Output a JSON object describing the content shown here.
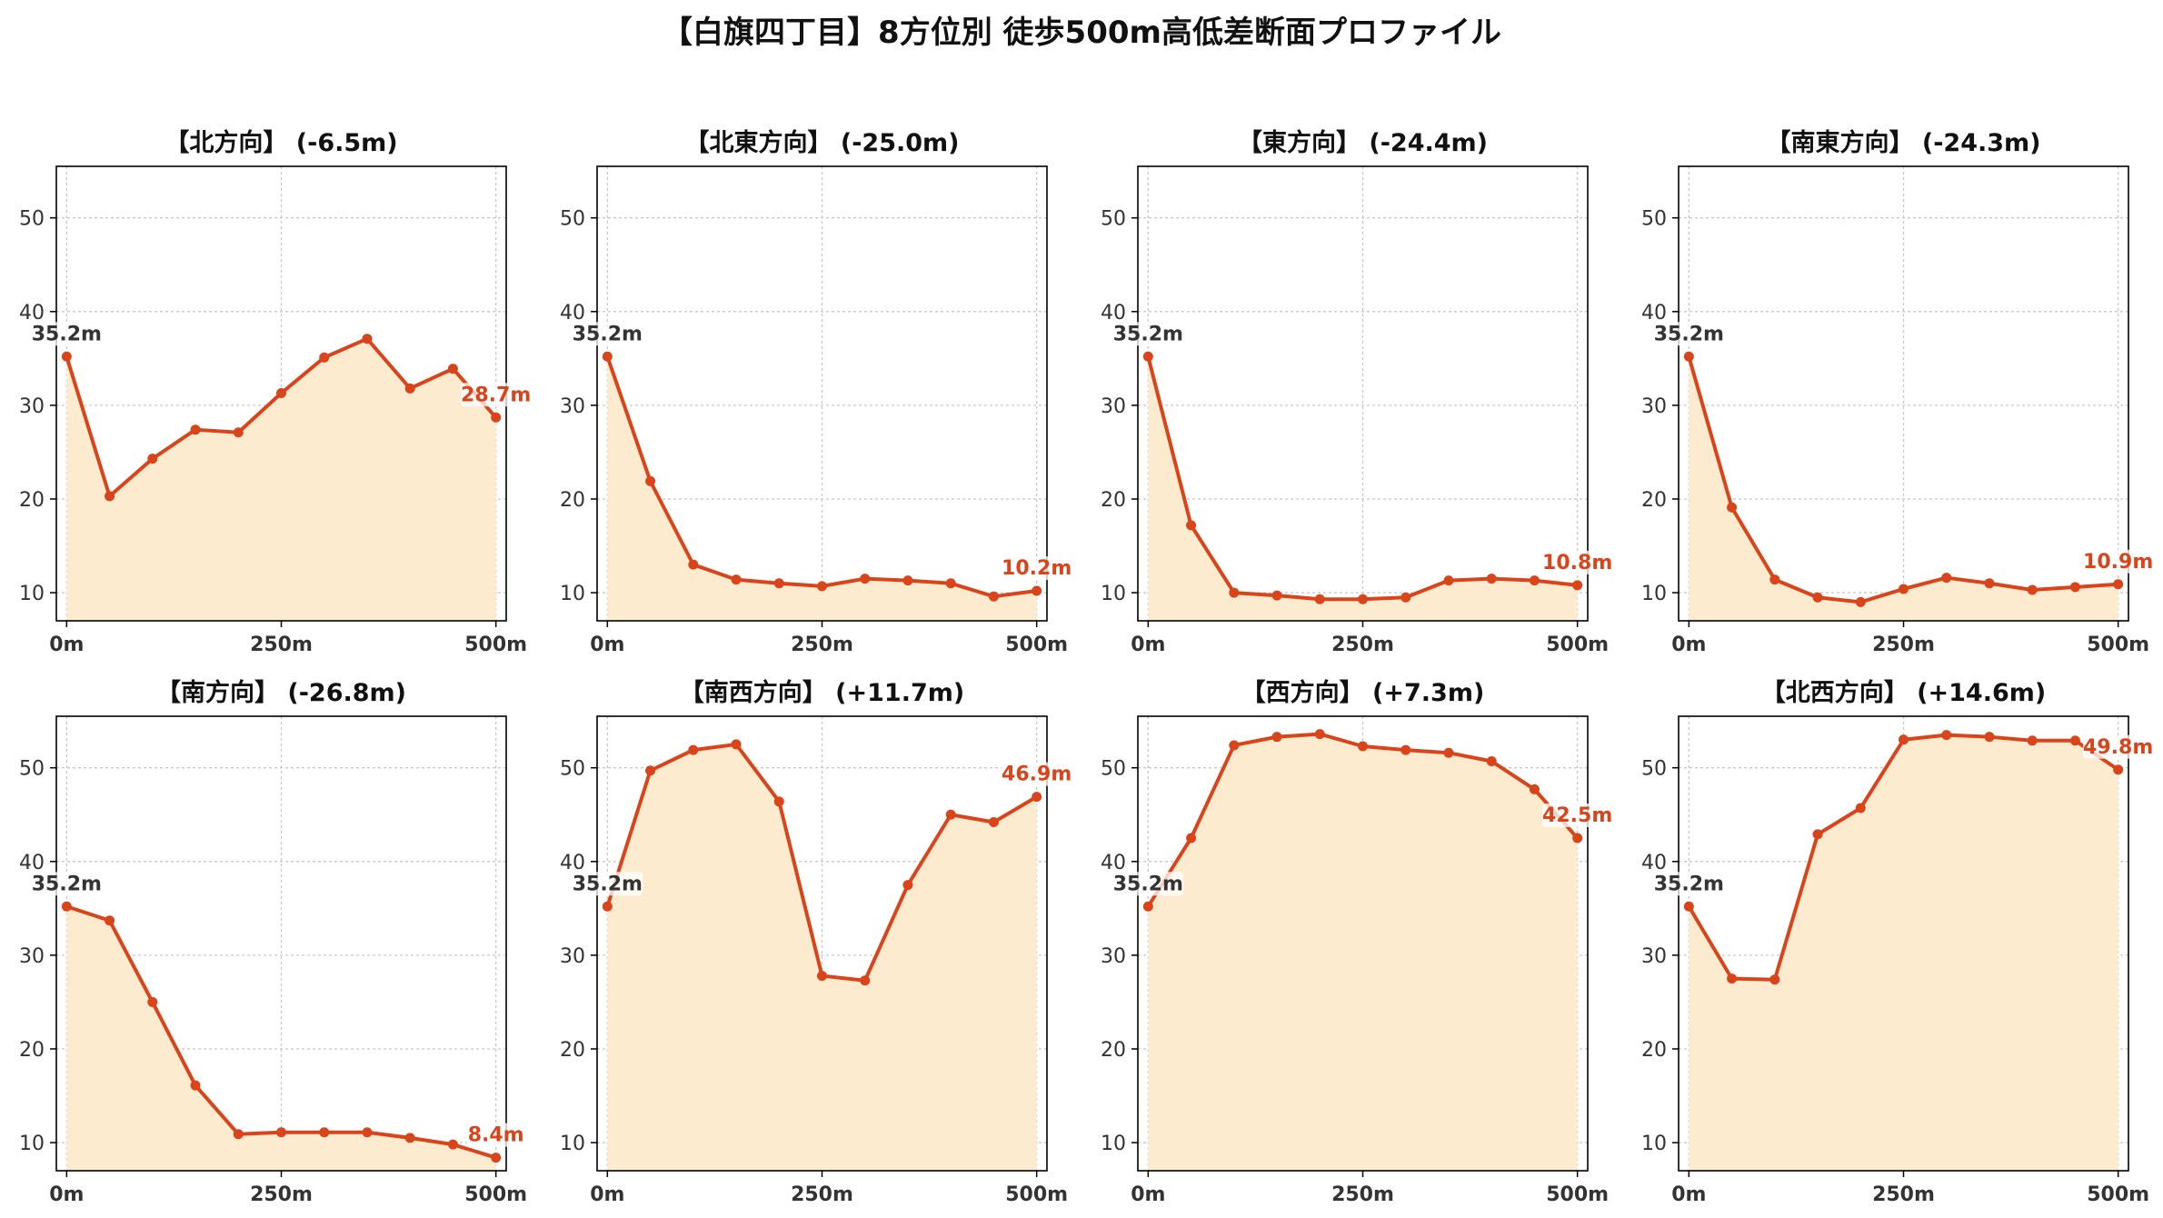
{
  "title": "【白旗四丁目】8方位別 徒歩500m高低差断面プロファイル",
  "colors": {
    "line": "#d9441a",
    "fill": "#fdebd0",
    "start_label": "#333333",
    "end_label": "#d9441a",
    "grid": "#c8c8c8",
    "axis": "#000000",
    "tick_text": "#333333"
  },
  "chart_data": [
    {
      "type": "area",
      "title": "【北方向】 (-6.5m)",
      "x": [
        0,
        50,
        100,
        150,
        200,
        250,
        300,
        350,
        400,
        450,
        500
      ],
      "y": [
        35.2,
        20.3,
        24.3,
        27.4,
        27.1,
        31.3,
        35.1,
        37.1,
        31.8,
        33.9,
        28.7
      ],
      "start_label": "35.2m",
      "end_label": "28.7m",
      "xticks": [
        0,
        250,
        500
      ],
      "xtick_labels": [
        "0m",
        "250m",
        "500m"
      ],
      "yticks": [
        10,
        20,
        30,
        40,
        50
      ],
      "ytick_labels": [
        "10",
        "20",
        "30",
        "40",
        "50"
      ],
      "xlim": [
        -12,
        512
      ],
      "ylim": [
        7,
        55.5
      ],
      "grid": true
    },
    {
      "type": "area",
      "title": "【北東方向】 (-25.0m)",
      "x": [
        0,
        50,
        100,
        150,
        200,
        250,
        300,
        350,
        400,
        450,
        500
      ],
      "y": [
        35.2,
        21.9,
        13.0,
        11.4,
        11.0,
        10.7,
        11.5,
        11.3,
        11.0,
        9.6,
        10.2
      ],
      "start_label": "35.2m",
      "end_label": "10.2m",
      "xticks": [
        0,
        250,
        500
      ],
      "xtick_labels": [
        "0m",
        "250m",
        "500m"
      ],
      "yticks": [
        10,
        20,
        30,
        40,
        50
      ],
      "ytick_labels": [
        "10",
        "20",
        "30",
        "40",
        "50"
      ],
      "xlim": [
        -12,
        512
      ],
      "ylim": [
        7,
        55.5
      ],
      "grid": true
    },
    {
      "type": "area",
      "title": "【東方向】 (-24.4m)",
      "x": [
        0,
        50,
        100,
        150,
        200,
        250,
        300,
        350,
        400,
        450,
        500
      ],
      "y": [
        35.2,
        17.2,
        10.0,
        9.7,
        9.3,
        9.3,
        9.5,
        11.3,
        11.5,
        11.3,
        10.8
      ],
      "start_label": "35.2m",
      "end_label": "10.8m",
      "xticks": [
        0,
        250,
        500
      ],
      "xtick_labels": [
        "0m",
        "250m",
        "500m"
      ],
      "yticks": [
        10,
        20,
        30,
        40,
        50
      ],
      "ytick_labels": [
        "10",
        "20",
        "30",
        "40",
        "50"
      ],
      "xlim": [
        -12,
        512
      ],
      "ylim": [
        7,
        55.5
      ],
      "grid": true
    },
    {
      "type": "area",
      "title": "【南東方向】 (-24.3m)",
      "x": [
        0,
        50,
        100,
        150,
        200,
        250,
        300,
        350,
        400,
        450,
        500
      ],
      "y": [
        35.2,
        19.1,
        11.4,
        9.5,
        9.0,
        10.4,
        11.6,
        11.0,
        10.3,
        10.6,
        10.9
      ],
      "start_label": "35.2m",
      "end_label": "10.9m",
      "xticks": [
        0,
        250,
        500
      ],
      "xtick_labels": [
        "0m",
        "250m",
        "500m"
      ],
      "yticks": [
        10,
        20,
        30,
        40,
        50
      ],
      "ytick_labels": [
        "10",
        "20",
        "30",
        "40",
        "50"
      ],
      "xlim": [
        -12,
        512
      ],
      "ylim": [
        7,
        55.5
      ],
      "grid": true
    },
    {
      "type": "area",
      "title": "【南方向】 (-26.8m)",
      "x": [
        0,
        50,
        100,
        150,
        200,
        250,
        300,
        350,
        400,
        450,
        500
      ],
      "y": [
        35.2,
        33.7,
        25.0,
        16.1,
        10.9,
        11.1,
        11.1,
        11.1,
        10.5,
        9.8,
        8.4
      ],
      "start_label": "35.2m",
      "end_label": "8.4m",
      "xticks": [
        0,
        250,
        500
      ],
      "xtick_labels": [
        "0m",
        "250m",
        "500m"
      ],
      "yticks": [
        10,
        20,
        30,
        40,
        50
      ],
      "ytick_labels": [
        "10",
        "20",
        "30",
        "40",
        "50"
      ],
      "xlim": [
        -12,
        512
      ],
      "ylim": [
        7,
        55.5
      ],
      "grid": true
    },
    {
      "type": "area",
      "title": "【南西方向】 (+11.7m)",
      "x": [
        0,
        50,
        100,
        150,
        200,
        250,
        300,
        350,
        400,
        450,
        500
      ],
      "y": [
        35.2,
        49.7,
        51.9,
        52.5,
        46.4,
        27.8,
        27.3,
        37.5,
        45.0,
        44.2,
        46.9
      ],
      "start_label": "35.2m",
      "end_label": "46.9m",
      "xticks": [
        0,
        250,
        500
      ],
      "xtick_labels": [
        "0m",
        "250m",
        "500m"
      ],
      "yticks": [
        10,
        20,
        30,
        40,
        50
      ],
      "ytick_labels": [
        "10",
        "20",
        "30",
        "40",
        "50"
      ],
      "xlim": [
        -12,
        512
      ],
      "ylim": [
        7,
        55.5
      ],
      "grid": true
    },
    {
      "type": "area",
      "title": "【西方向】 (+7.3m)",
      "x": [
        0,
        50,
        100,
        150,
        200,
        250,
        300,
        350,
        400,
        450,
        500
      ],
      "y": [
        35.2,
        42.5,
        52.4,
        53.3,
        53.6,
        52.3,
        51.9,
        51.6,
        50.7,
        47.7,
        42.5
      ],
      "start_label": "35.2m",
      "end_label": "42.5m",
      "xticks": [
        0,
        250,
        500
      ],
      "xtick_labels": [
        "0m",
        "250m",
        "500m"
      ],
      "yticks": [
        10,
        20,
        30,
        40,
        50
      ],
      "ytick_labels": [
        "10",
        "20",
        "30",
        "40",
        "50"
      ],
      "xlim": [
        -12,
        512
      ],
      "ylim": [
        7,
        55.5
      ],
      "grid": true
    },
    {
      "type": "area",
      "title": "【北西方向】 (+14.6m)",
      "x": [
        0,
        50,
        100,
        150,
        200,
        250,
        300,
        350,
        400,
        450,
        500
      ],
      "y": [
        35.2,
        27.5,
        27.4,
        42.9,
        45.7,
        53.0,
        53.5,
        53.3,
        52.9,
        52.9,
        49.8
      ],
      "start_label": "35.2m",
      "end_label": "49.8m",
      "xticks": [
        0,
        250,
        500
      ],
      "xtick_labels": [
        "0m",
        "250m",
        "500m"
      ],
      "yticks": [
        10,
        20,
        30,
        40,
        50
      ],
      "ytick_labels": [
        "10",
        "20",
        "30",
        "40",
        "50"
      ],
      "xlim": [
        -12,
        512
      ],
      "ylim": [
        7,
        55.5
      ],
      "grid": true
    }
  ]
}
